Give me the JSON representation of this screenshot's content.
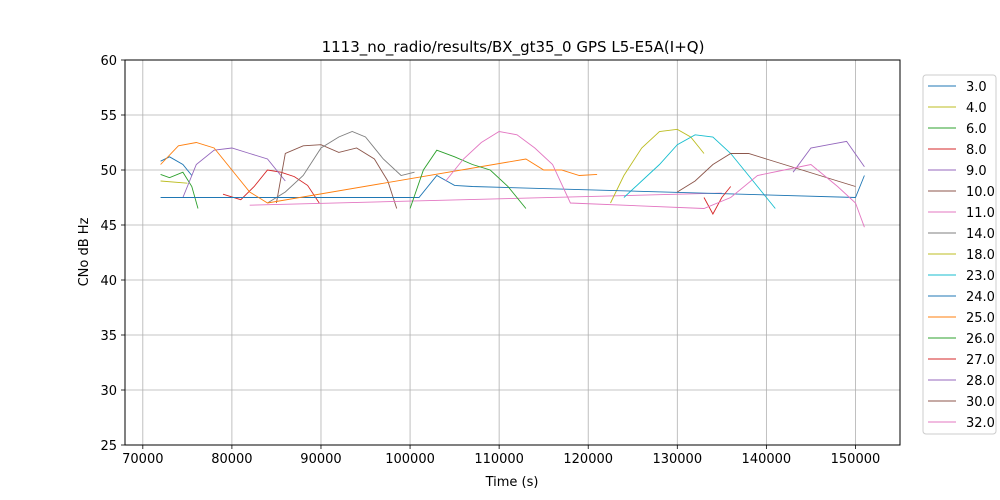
{
  "chart_data": {
    "type": "line",
    "title": "1113_no_radio/results/BX_gt35_0 GPS L5-E5A(I+Q)",
    "xlabel": "Time (s)",
    "ylabel": "CNo dB Hz",
    "xlim": [
      68000,
      155000
    ],
    "ylim": [
      25,
      60
    ],
    "xticks": [
      70000,
      80000,
      90000,
      100000,
      110000,
      120000,
      130000,
      140000,
      150000
    ],
    "xtick_labels": [
      "70000",
      "80000",
      "90000",
      "100000",
      "110000",
      "120000",
      "130000",
      "140000",
      "150000"
    ],
    "yticks": [
      25,
      30,
      35,
      40,
      45,
      50,
      55,
      60
    ],
    "ytick_labels": [
      "25",
      "30",
      "35",
      "40",
      "45",
      "50",
      "55",
      "60"
    ],
    "grid": true,
    "legend_position": "right, outside plot",
    "series": [
      {
        "name": "3.0",
        "color": "#1f77b4",
        "x": [
          72000,
          73000,
          74500,
          75500
        ],
        "y": [
          50.8,
          51.2,
          50.5,
          49.5
        ]
      },
      {
        "name": "4.0",
        "color": "#bcbd22",
        "x": [
          72000,
          75000
        ],
        "y": [
          49.0,
          48.8
        ]
      },
      {
        "name": "6.0",
        "color": "#2ca02c",
        "x": [
          72000,
          73000,
          74500,
          75500,
          76200
        ],
        "y": [
          49.6,
          49.3,
          49.8,
          48.5,
          46.5
        ]
      },
      {
        "name": "8.0",
        "color": "#d62728",
        "x": [
          79000,
          81000,
          82500,
          84000,
          85500,
          87000,
          88500,
          89800
        ],
        "y": [
          47.8,
          47.3,
          48.5,
          50.0,
          49.8,
          49.4,
          48.6,
          47.0
        ]
      },
      {
        "name": "9.0",
        "color": "#9467bd",
        "x": [
          74500,
          76000,
          78000,
          80000,
          82000,
          84000,
          86000
        ],
        "y": [
          47.5,
          50.5,
          51.8,
          52.0,
          51.5,
          51.0,
          49.0
        ]
      },
      {
        "name": "10.0",
        "color": "#8c564b",
        "x": [
          85000,
          86000,
          88000,
          90000,
          92000,
          94000,
          96000,
          97500,
          98500
        ],
        "y": [
          47.0,
          51.5,
          52.2,
          52.3,
          51.6,
          52.0,
          51.0,
          49.0,
          46.5
        ]
      },
      {
        "name": "11.0",
        "color": "#e377c2",
        "x": [
          82000,
          135000
        ],
        "y": [
          46.8,
          47.9
        ]
      },
      {
        "name": "14.0",
        "color": "#7f7f7f",
        "x": [
          84000,
          86000,
          88000,
          90000,
          92000,
          93500,
          95000,
          97000,
          99000,
          100500
        ],
        "y": [
          47.0,
          48.0,
          49.5,
          52.0,
          53.0,
          53.5,
          53.0,
          51.0,
          49.5,
          49.8
        ]
      },
      {
        "name": "18.0",
        "color": "#bcbd22",
        "x": [
          122500,
          124000,
          126000,
          128000,
          130000,
          131500,
          133000
        ],
        "y": [
          47.0,
          49.5,
          52.0,
          53.5,
          53.7,
          53.0,
          51.5
        ]
      },
      {
        "name": "23.0",
        "color": "#17becf",
        "x": [
          124000,
          126000,
          128000,
          130000,
          132000,
          134000,
          136000,
          138000,
          140000,
          141000
        ],
        "y": [
          47.5,
          49.0,
          50.5,
          52.3,
          53.2,
          53.0,
          51.5,
          49.5,
          47.5,
          46.5
        ]
      },
      {
        "name": "24.0",
        "color": "#1f77b4",
        "x": [
          72000,
          101000,
          103000,
          105000,
          107000,
          150000,
          151000
        ],
        "y": [
          47.5,
          47.5,
          49.5,
          48.6,
          48.5,
          47.5,
          49.5
        ]
      },
      {
        "name": "25.0",
        "color": "#ff7f0e",
        "x": [
          72000,
          74000,
          76000,
          78000,
          80000,
          82000,
          84000,
          113000,
          115000,
          117000,
          119000,
          121000
        ],
        "y": [
          50.5,
          52.2,
          52.5,
          52.0,
          50.0,
          48.0,
          47.0,
          51.0,
          50.0,
          50.0,
          49.5,
          49.6
        ]
      },
      {
        "name": "26.0",
        "color": "#2ca02c",
        "x": [
          100000,
          101500,
          103000,
          105000,
          107000,
          109000,
          111000,
          113000
        ],
        "y": [
          46.5,
          50.0,
          51.8,
          51.2,
          50.5,
          50.0,
          48.5,
          46.5
        ]
      },
      {
        "name": "27.0",
        "color": "#d62728",
        "x": [
          133000,
          134000,
          135000,
          136000
        ],
        "y": [
          47.5,
          46.0,
          47.5,
          48.5
        ]
      },
      {
        "name": "28.0",
        "color": "#9467bd",
        "x": [
          143000,
          145000,
          147000,
          149000,
          151000
        ],
        "y": [
          49.8,
          52.0,
          52.3,
          52.6,
          50.3
        ]
      },
      {
        "name": "30.0",
        "color": "#8c564b",
        "x": [
          130000,
          132000,
          134000,
          136000,
          138000,
          140000,
          142000,
          144000,
          146000,
          148000,
          150000
        ],
        "y": [
          48.0,
          49.0,
          50.5,
          51.5,
          51.5,
          51.0,
          50.5,
          50.0,
          49.5,
          49.0,
          48.5
        ]
      },
      {
        "name": "32.0",
        "color": "#e377c2",
        "x": [
          104000,
          106000,
          108000,
          110000,
          112000,
          114000,
          116000,
          118000,
          133000,
          136000,
          139000,
          142000,
          145000,
          148000,
          150000,
          151000
        ],
        "y": [
          49.0,
          51.0,
          52.5,
          53.5,
          53.2,
          52.0,
          50.5,
          47.0,
          46.5,
          47.5,
          49.5,
          50.0,
          50.5,
          48.5,
          47.0,
          44.8
        ]
      }
    ]
  }
}
